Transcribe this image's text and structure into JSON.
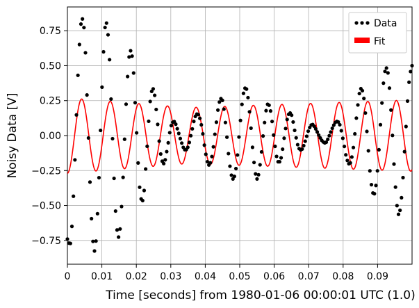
{
  "chart_data": {
    "type": "scatter",
    "xlabel": "Time [seconds] from 1980-01-06 00:00:01 UTC (1.0)",
    "ylabel": "Noisy Data [V]",
    "xlim": [
      0,
      0.1
    ],
    "ylim": [
      -0.92,
      0.92
    ],
    "grid": true,
    "legend_position": "top-right",
    "x_ticks": [
      "0",
      "0.01",
      "0.02",
      "0.03",
      "0.04",
      "0.05",
      "0.06",
      "0.07",
      "0.08",
      "0.09"
    ],
    "x_tick_values": [
      0,
      0.01,
      0.02,
      0.03,
      0.04,
      0.05,
      0.06,
      0.07,
      0.08,
      0.09
    ],
    "y_ticks": [
      "0.75",
      "0.50",
      "0.25",
      "0.00",
      "−0.25",
      "−0.50",
      "−0.75"
    ],
    "y_tick_values": [
      0.75,
      0.5,
      0.25,
      0.0,
      -0.25,
      -0.5,
      -0.75
    ],
    "series": [
      {
        "name": "Data",
        "kind": "scatter",
        "color": "#000000",
        "x": [
          0.0,
          0.001,
          0.002,
          0.003,
          0.004,
          0.005,
          0.006,
          0.007,
          0.008,
          0.009,
          0.01,
          0.011,
          0.012,
          0.013,
          0.014,
          0.015,
          0.016,
          0.017,
          0.018,
          0.019,
          0.02,
          0.021,
          0.022,
          0.023,
          0.024,
          0.025,
          0.026,
          0.027,
          0.028,
          0.029,
          0.03,
          0.031,
          0.032,
          0.033,
          0.034,
          0.035,
          0.036,
          0.037,
          0.038,
          0.039,
          0.04,
          0.041,
          0.042,
          0.043,
          0.044,
          0.045,
          0.046,
          0.047,
          0.048,
          0.049,
          0.05,
          0.051,
          0.052,
          0.053,
          0.054,
          0.055,
          0.056,
          0.057,
          0.058,
          0.059,
          0.06,
          0.061,
          0.062,
          0.063,
          0.064,
          0.065,
          0.066,
          0.067,
          0.068,
          0.069,
          0.07,
          0.071,
          0.072,
          0.073,
          0.074,
          0.075,
          0.076,
          0.077,
          0.078,
          0.079,
          0.08,
          0.081,
          0.082,
          0.083,
          0.084,
          0.085,
          0.086,
          0.087,
          0.088,
          0.089,
          0.09,
          0.091,
          0.092,
          0.093,
          0.094,
          0.095,
          0.096,
          0.097,
          0.098,
          0.099,
          0.1
        ],
        "y": [
          -0.74,
          -0.75,
          -0.29,
          0.4,
          0.81,
          0.71,
          0.06,
          -0.6,
          -0.82,
          -0.41,
          0.32,
          0.79,
          0.65,
          0.04,
          -0.55,
          -0.72,
          -0.38,
          0.21,
          0.58,
          0.52,
          0.06,
          -0.38,
          -0.45,
          -0.13,
          0.24,
          0.33,
          0.13,
          -0.12,
          -0.2,
          -0.09,
          0.06,
          0.1,
          0.04,
          -0.04,
          -0.1,
          -0.08,
          0.02,
          0.13,
          0.15,
          0.06,
          -0.11,
          -0.21,
          -0.14,
          0.05,
          0.23,
          0.25,
          0.06,
          -0.19,
          -0.31,
          -0.22,
          0.05,
          0.29,
          0.33,
          0.13,
          -0.16,
          -0.31,
          -0.19,
          0.05,
          0.22,
          0.17,
          -0.03,
          -0.18,
          -0.16,
          0.0,
          0.14,
          0.15,
          0.03,
          -0.08,
          -0.1,
          -0.04,
          0.04,
          0.08,
          0.05,
          0.0,
          -0.04,
          -0.05,
          0.0,
          0.06,
          0.1,
          0.08,
          -0.03,
          -0.16,
          -0.2,
          -0.08,
          0.16,
          0.33,
          0.27,
          0.0,
          -0.31,
          -0.42,
          -0.24,
          0.14,
          0.44,
          0.45,
          0.14,
          -0.3,
          -0.56,
          -0.43,
          -0.04,
          0.35,
          0.5
        ]
      },
      {
        "name": "Fit",
        "kind": "line",
        "color": "#ff0000",
        "amplitude_start": 0.27,
        "amplitude_mid": 0.2,
        "amplitude_end": 0.255,
        "period": 0.0083,
        "phase_x": 0.0
      }
    ]
  },
  "legend": {
    "data_label": "Data",
    "fit_label": "Fit"
  }
}
